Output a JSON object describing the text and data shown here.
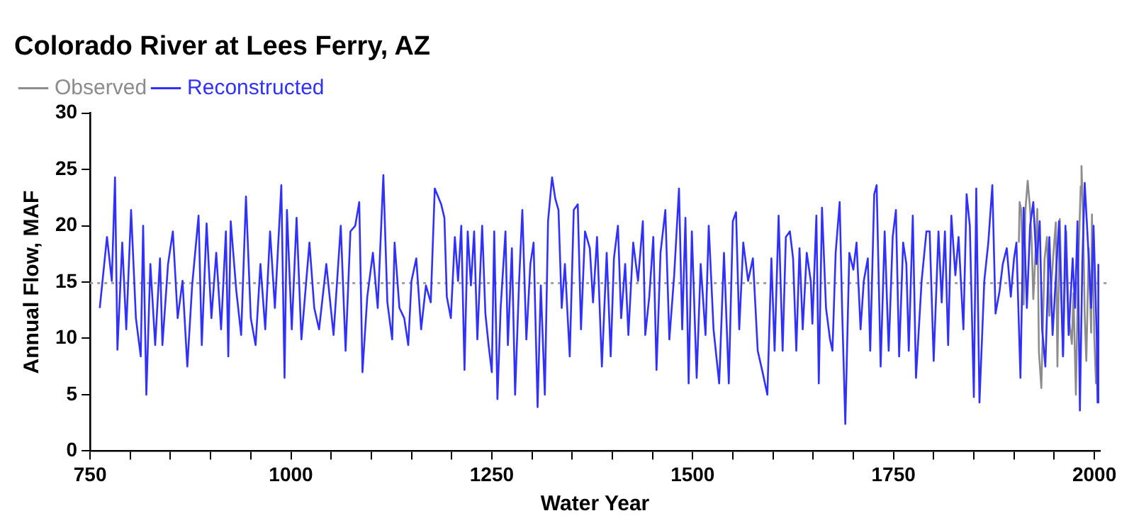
{
  "chart_data": {
    "type": "line",
    "title": "Colorado River at Lees Ferry, AZ",
    "xlabel": "Water Year",
    "ylabel": "Annual Flow, MAF",
    "xlim": [
      750,
      2007
    ],
    "xticks": [
      750,
      {
        "value": 800,
        "label": null
      },
      {
        "value": 850,
        "label": null
      },
      {
        "value": 900,
        "label": null
      },
      {
        "value": 950,
        "label": null
      },
      1000,
      {
        "value": 1050,
        "label": null
      },
      {
        "value": 1100,
        "label": null
      },
      {
        "value": 1150,
        "label": null
      },
      {
        "value": 1200,
        "label": null
      },
      1250,
      {
        "value": 1300,
        "label": null
      },
      {
        "value": 1350,
        "label": null
      },
      {
        "value": 1400,
        "label": null
      },
      {
        "value": 1450,
        "label": null
      },
      1500,
      {
        "value": 1550,
        "label": null
      },
      {
        "value": 1600,
        "label": null
      },
      {
        "value": 1650,
        "label": null
      },
      {
        "value": 1700,
        "label": null
      },
      1750,
      {
        "value": 1800,
        "label": null
      },
      {
        "value": 1850,
        "label": null
      },
      {
        "value": 1900,
        "label": null
      },
      {
        "value": 1950,
        "label": null
      },
      2000
    ],
    "ylim": [
      0,
      30
    ],
    "yticks": [
      0,
      5,
      10,
      15,
      20,
      25,
      30
    ],
    "legend": "top left",
    "marker": "none",
    "line_style": "solid",
    "grid": false,
    "ref_lines": [
      {
        "axis": "y",
        "value": 14.9,
        "label": null,
        "color": "#a0a0a0",
        "line_style": "dotted"
      }
    ],
    "series": [
      {
        "name": "Observed",
        "color": "#8c8c8c",
        "x": [
          1906,
          1907,
          1909,
          1912,
          1914,
          1917,
          1920,
          1922,
          1924,
          1927,
          1929,
          1931,
          1934,
          1938,
          1941,
          1944,
          1949,
          1952,
          1954,
          1957,
          1961,
          1965,
          1968,
          1972,
          1974,
          1977,
          1980,
          1983,
          1984,
          1986,
          1988,
          1990,
          1993,
          1996,
          1997,
          2000,
          2002,
          2004,
          2005
        ],
        "values": [
          18.5,
          22.1,
          21.4,
          13,
          21.2,
          24,
          21.5,
          18.5,
          13.5,
          18,
          21.5,
          8.8,
          5.6,
          17,
          19,
          12,
          17.5,
          20.3,
          7.5,
          20.6,
          8.5,
          19.5,
          12,
          9.5,
          14,
          5,
          16.5,
          23.5,
          25.3,
          20.5,
          12,
          8,
          18,
          10.5,
          21,
          10,
          6,
          9.7,
          16
        ]
      },
      {
        "name": "Reconstructed",
        "color": "#3030ff",
        "x": [
          762,
          771,
          777,
          781,
          784,
          790,
          795,
          801,
          807,
          813,
          816,
          820,
          825,
          831,
          837,
          840,
          847,
          853,
          859,
          865,
          871,
          877,
          885,
          889,
          895,
          901,
          907,
          913,
          919,
          922,
          925,
          932,
          938,
          944,
          950,
          956,
          962,
          968,
          974,
          980,
          988,
          992,
          995,
          1001,
          1007,
          1013,
          1023,
          1029,
          1035,
          1044,
          1053,
          1062,
          1068,
          1074,
          1080,
          1085,
          1089,
          1095,
          1102,
          1108,
          1115,
          1120,
          1126,
          1129,
          1135,
          1141,
          1146,
          1150,
          1156,
          1162,
          1168,
          1174,
          1179,
          1187,
          1191,
          1194,
          1199,
          1204,
          1208,
          1212,
          1216,
          1220,
          1224,
          1228,
          1232,
          1238,
          1242,
          1246,
          1250,
          1253,
          1257,
          1261,
          1267,
          1270,
          1275,
          1279,
          1284,
          1288,
          1293,
          1298,
          1302,
          1307,
          1311,
          1316,
          1320,
          1325,
          1329,
          1333,
          1337,
          1341,
          1347,
          1352,
          1357,
          1361,
          1366,
          1372,
          1376,
          1381,
          1387,
          1393,
          1398,
          1402,
          1407,
          1411,
          1416,
          1420,
          1426,
          1432,
          1438,
          1441,
          1446,
          1451,
          1455,
          1460,
          1466,
          1471,
          1477,
          1483,
          1487,
          1491,
          1495,
          1499,
          1505,
          1510,
          1516,
          1520,
          1526,
          1533,
          1539,
          1545,
          1550,
          1554,
          1558,
          1563,
          1569,
          1575,
          1581,
          1587,
          1593,
          1598,
          1602,
          1607,
          1612,
          1616,
          1621,
          1625,
          1629,
          1633,
          1637,
          1642,
          1647,
          1649,
          1654,
          1657,
          1661,
          1666,
          1671,
          1674,
          1678,
          1683,
          1686,
          1690,
          1695,
          1700,
          1704,
          1709,
          1713,
          1718,
          1721,
          1726,
          1729,
          1734,
          1739,
          1744,
          1749,
          1753,
          1757,
          1762,
          1766,
          1769,
          1774,
          1778,
          1785,
          1791,
          1795,
          1800,
          1806,
          1810,
          1814,
          1818,
          1822,
          1827,
          1831,
          1837,
          1841,
          1845,
          1850,
          1853,
          1857,
          1863,
          1868,
          1873,
          1877,
          1882,
          1886,
          1891,
          1896,
          1900,
          1903,
          1908,
          1912,
          1916,
          1920,
          1924,
          1928,
          1932,
          1935,
          1939,
          1944,
          1948,
          1953,
          1956,
          1961,
          1964,
          1968,
          1973,
          1976,
          1979,
          1982,
          1985,
          1988,
          1992,
          1996,
          1999,
          2001,
          2003,
          2004,
          2005
        ],
        "values": [
          12.7,
          19,
          15.1,
          24.3,
          9,
          18.5,
          10.8,
          21.4,
          11.8,
          8.4,
          20,
          5,
          16.6,
          9.4,
          17.1,
          9.4,
          16.6,
          19.5,
          11.8,
          15.1,
          7.5,
          14.7,
          20.9,
          9.4,
          20.2,
          11.8,
          17.6,
          10.8,
          19.5,
          8.4,
          20.4,
          14.2,
          10.3,
          22.6,
          11.8,
          9.4,
          16.6,
          10.8,
          19.5,
          12.7,
          23.6,
          6.5,
          21.4,
          10.8,
          20.7,
          9.9,
          18.5,
          12.7,
          10.8,
          16.6,
          10.3,
          20,
          8.9,
          19.5,
          20,
          22.1,
          7,
          13.7,
          17.6,
          12.7,
          24.5,
          13.2,
          9.9,
          18.5,
          12.7,
          11.8,
          9.4,
          15.1,
          17.1,
          10.8,
          14.7,
          13.2,
          23.3,
          21.9,
          20.7,
          13.7,
          11.8,
          19,
          15.1,
          20,
          7.2,
          19.5,
          14.7,
          19.5,
          9.9,
          20,
          12.2,
          9.4,
          7,
          19.5,
          4.6,
          12.7,
          19.5,
          9.4,
          18,
          5,
          15.1,
          21.4,
          9.9,
          16.6,
          18.5,
          3.9,
          14.7,
          5,
          20.4,
          24.3,
          22.4,
          21.4,
          12.7,
          16.6,
          8.4,
          21.4,
          21.9,
          10.8,
          19.5,
          18,
          13.2,
          19,
          7.5,
          17.6,
          8.4,
          17.1,
          20,
          11.8,
          16.6,
          10.3,
          18.5,
          15.1,
          20.4,
          10.3,
          13.7,
          19,
          7.2,
          17.6,
          21.4,
          9.9,
          15.6,
          23.3,
          10.8,
          20.7,
          6,
          19.5,
          6.5,
          16.6,
          10.3,
          20,
          10.8,
          6,
          17.6,
          6,
          20.4,
          21.2,
          10.8,
          18.5,
          15.1,
          17.1,
          8.9,
          7,
          5,
          17.1,
          8.9,
          20.9,
          8.9,
          19,
          19.5,
          17.1,
          8.9,
          18,
          10.8,
          17.6,
          15.1,
          11.3,
          20.9,
          6,
          21.6,
          12.7,
          9.9,
          8.9,
          17.6,
          22.1,
          12.7,
          2.4,
          17.6,
          16.1,
          18.5,
          10.8,
          15.1,
          17.1,
          8.9,
          22.8,
          23.6,
          7.5,
          19.5,
          8.9,
          19,
          21.4,
          8.4,
          18.5,
          16.6,
          8.9,
          20.9,
          6.5,
          15.1,
          19.5,
          19.5,
          8,
          19.5,
          13.2,
          19.5,
          9.4,
          20.9,
          15.6,
          19,
          10.8,
          22.8,
          20,
          4.8,
          23.3,
          4.3,
          15.1,
          18.5,
          23.6,
          12.2,
          14.2,
          16.6,
          18,
          13.7,
          17.1,
          18.5,
          6.5,
          21.6,
          12.7,
          20,
          22.1,
          16.6,
          20.4,
          10.8,
          7.5,
          19,
          10.3,
          16.6,
          20.4,
          8.4,
          20,
          10.3,
          17.1,
          12.7,
          20.4,
          3.6,
          16.6,
          23.8,
          18.5,
          12.7,
          20,
          15.1,
          9.9,
          4.3,
          16.6
        ]
      }
    ]
  }
}
